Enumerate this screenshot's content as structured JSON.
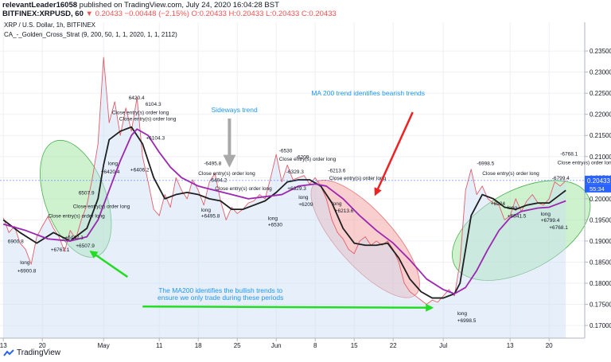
{
  "header": {
    "author": "relevantLeader16058",
    "published": "published on TradingView.com, July 24, 2020 16:04:28 BST",
    "symbol": "BITFINEX:XRPUSD, 60",
    "change": "▼ 0.20433 −0.00448 (−2.15%)",
    "ohlc": "O:0.20433 H:0.20433 L:0.20433 C:0.20433"
  },
  "legend": {
    "pair": "XRP / U.S. Dollar, 1h, BITFINEX",
    "strategy": "CA_-_Golden_Cross_Strat (9, 200, 50, 1, 1, 2020, 1, 1, 2112)"
  },
  "footer": {
    "brand": "TradingView"
  },
  "colors": {
    "price": "#e35d6a",
    "price_bull": "#5b9bd5",
    "ma_fast": "#1f1f1f",
    "ma_slow": "#9c27b0",
    "bull_fill": "#a6e8a6",
    "bear_fill": "#f4a6a6",
    "annotation": "#2196f3",
    "arrow_green": "#22dd22",
    "arrow_red": "#ee2222",
    "arrow_gray": "#a9a9a9",
    "axis_accent": "#2962ff"
  },
  "chart_data": {
    "type": "line",
    "x_labels": [
      "13",
      "20",
      "May",
      "11",
      "18",
      "25",
      "Jun",
      "8",
      "15",
      "22",
      "Jul",
      "13",
      "20"
    ],
    "x_label_days": [
      -18,
      -11,
      0,
      10,
      17,
      24,
      31,
      38,
      45,
      52,
      61,
      73,
      80
    ],
    "y_ticks": [
      "0.23500",
      "0.23000",
      "0.22500",
      "0.22000",
      "0.21500",
      "0.21000",
      "0.20500",
      "0.20000",
      "0.19500",
      "0.19000",
      "0.18500",
      "0.18000",
      "0.17500",
      "0.17000"
    ],
    "ylim": [
      0.167,
      0.2418
    ],
    "xlim_days": [
      -18.6,
      86.4
    ],
    "last_price": "0.20433",
    "countdown": "55:34",
    "series": [
      {
        "key": "price",
        "points": [
          [
            -18,
            0.1955
          ],
          [
            -17,
            0.192
          ],
          [
            -16,
            0.1935
          ],
          [
            -15,
            0.1895
          ],
          [
            -14,
            0.188
          ],
          [
            -13,
            0.1845
          ],
          [
            -12,
            0.191
          ],
          [
            -11,
            0.1935
          ],
          [
            -10,
            0.1958
          ],
          [
            -9,
            0.193
          ],
          [
            -8,
            0.191
          ],
          [
            -7,
            0.1875
          ],
          [
            -6,
            0.1925
          ],
          [
            -5,
            0.1905
          ],
          [
            -4,
            0.195
          ],
          [
            -3,
            0.1985
          ],
          [
            -2,
            0.205
          ],
          [
            -1,
            0.213
          ],
          [
            0,
            0.2335
          ],
          [
            1,
            0.218
          ],
          [
            2,
            0.223
          ],
          [
            3,
            0.215
          ],
          [
            4,
            0.2215
          ],
          [
            5,
            0.216
          ],
          [
            6,
            0.224
          ],
          [
            7,
            0.21
          ],
          [
            8,
            0.204
          ],
          [
            9,
            0.1975
          ],
          [
            10,
            0.196
          ],
          [
            11,
            0.201
          ],
          [
            12,
            0.198
          ],
          [
            13,
            0.205
          ],
          [
            14,
            0.202
          ],
          [
            15,
            0.2
          ],
          [
            16,
            0.2045
          ],
          [
            17,
            0.202
          ],
          [
            18,
            0.1985
          ],
          [
            19,
            0.204
          ],
          [
            20,
            0.206
          ],
          [
            21,
            0.1995
          ],
          [
            22,
            0.195
          ],
          [
            23,
            0.198
          ],
          [
            24,
            0.1965
          ],
          [
            25,
            0.1975
          ],
          [
            26,
            0.199
          ],
          [
            27,
            0.1995
          ],
          [
            28,
            0.201
          ],
          [
            29,
            0.2
          ],
          [
            30,
            0.205
          ],
          [
            31,
            0.2105
          ],
          [
            32,
            0.204
          ],
          [
            33,
            0.208
          ],
          [
            34,
            0.2045
          ],
          [
            35,
            0.205
          ],
          [
            36,
            0.2055
          ],
          [
            37,
            0.2035
          ],
          [
            38,
            0.205
          ],
          [
            39,
            0.203
          ],
          [
            40,
            0.2
          ],
          [
            41,
            0.195
          ],
          [
            42,
            0.192
          ],
          [
            43,
            0.1905
          ],
          [
            44,
            0.188
          ],
          [
            45,
            0.187
          ],
          [
            46,
            0.19
          ],
          [
            47,
            0.191
          ],
          [
            48,
            0.189
          ],
          [
            49,
            0.19
          ],
          [
            50,
            0.189
          ],
          [
            51,
            0.19
          ],
          [
            52,
            0.188
          ],
          [
            53,
            0.185
          ],
          [
            54,
            0.18
          ],
          [
            55,
            0.178
          ],
          [
            56,
            0.177
          ],
          [
            57,
            0.176
          ],
          [
            58,
            0.175
          ],
          [
            59,
            0.176
          ],
          [
            60,
            0.1755
          ],
          [
            61,
            0.177
          ],
          [
            62,
            0.1785
          ],
          [
            63,
            0.177
          ],
          [
            64,
            0.185
          ],
          [
            65,
            0.202
          ],
          [
            66,
            0.207
          ],
          [
            67,
            0.201
          ],
          [
            68,
            0.203
          ],
          [
            69,
            0.2
          ],
          [
            70,
            0.199
          ],
          [
            71,
            0.1985
          ],
          [
            72,
            0.195
          ],
          [
            73,
            0.196
          ],
          [
            74,
            0.2
          ],
          [
            75,
            0.197
          ],
          [
            76,
            0.1995
          ],
          [
            77,
            0.201
          ],
          [
            78,
            0.199
          ],
          [
            79,
            0.1985
          ],
          [
            80,
            0.2
          ],
          [
            81,
            0.204
          ],
          [
            82,
            0.203
          ],
          [
            83,
            0.2043
          ]
        ]
      },
      {
        "key": "ma_fast",
        "points": [
          [
            -18,
            0.195
          ],
          [
            -15,
            0.192
          ],
          [
            -12,
            0.1895
          ],
          [
            -9,
            0.192
          ],
          [
            -6,
            0.19
          ],
          [
            -3,
            0.193
          ],
          [
            -1,
            0.2
          ],
          [
            0,
            0.208
          ],
          [
            1,
            0.214
          ],
          [
            3,
            0.216
          ],
          [
            5,
            0.217
          ],
          [
            7,
            0.213
          ],
          [
            9,
            0.205
          ],
          [
            11,
            0.2
          ],
          [
            13,
            0.201
          ],
          [
            15,
            0.2015
          ],
          [
            17,
            0.201
          ],
          [
            19,
            0.2
          ],
          [
            21,
            0.1995
          ],
          [
            23,
            0.1975
          ],
          [
            25,
            0.1975
          ],
          [
            27,
            0.1985
          ],
          [
            29,
            0.1995
          ],
          [
            31,
            0.2015
          ],
          [
            33,
            0.204
          ],
          [
            35,
            0.2045
          ],
          [
            37,
            0.2045
          ],
          [
            39,
            0.203
          ],
          [
            41,
            0.199
          ],
          [
            43,
            0.193
          ],
          [
            45,
            0.1895
          ],
          [
            47,
            0.189
          ],
          [
            49,
            0.189
          ],
          [
            51,
            0.1895
          ],
          [
            53,
            0.186
          ],
          [
            55,
            0.181
          ],
          [
            57,
            0.178
          ],
          [
            59,
            0.1765
          ],
          [
            61,
            0.1765
          ],
          [
            63,
            0.1775
          ],
          [
            64,
            0.18
          ],
          [
            65,
            0.188
          ],
          [
            66,
            0.196
          ],
          [
            68,
            0.201
          ],
          [
            70,
            0.2
          ],
          [
            72,
            0.198
          ],
          [
            74,
            0.1975
          ],
          [
            76,
            0.1985
          ],
          [
            78,
            0.199
          ],
          [
            80,
            0.199
          ],
          [
            82,
            0.201
          ],
          [
            83,
            0.202
          ]
        ]
      },
      {
        "key": "ma_slow",
        "points": [
          [
            -18,
            0.194
          ],
          [
            -14,
            0.1925
          ],
          [
            -10,
            0.1905
          ],
          [
            -6,
            0.19
          ],
          [
            -3,
            0.191
          ],
          [
            -1,
            0.195
          ],
          [
            1,
            0.202
          ],
          [
            3,
            0.209
          ],
          [
            5,
            0.215
          ],
          [
            6,
            0.2165
          ],
          [
            8,
            0.215
          ],
          [
            10,
            0.211
          ],
          [
            12,
            0.2075
          ],
          [
            14,
            0.205
          ],
          [
            17,
            0.203
          ],
          [
            20,
            0.202
          ],
          [
            23,
            0.201
          ],
          [
            26,
            0.2
          ],
          [
            29,
            0.2005
          ],
          [
            32,
            0.201
          ],
          [
            35,
            0.203
          ],
          [
            38,
            0.2035
          ],
          [
            40,
            0.203
          ],
          [
            43,
            0.2
          ],
          [
            46,
            0.196
          ],
          [
            49,
            0.1925
          ],
          [
            52,
            0.1895
          ],
          [
            55,
            0.1855
          ],
          [
            58,
            0.181
          ],
          [
            61,
            0.1785
          ],
          [
            63,
            0.1775
          ],
          [
            65,
            0.179
          ],
          [
            67,
            0.183
          ],
          [
            69,
            0.188
          ],
          [
            71,
            0.1925
          ],
          [
            73,
            0.1955
          ],
          [
            75,
            0.197
          ],
          [
            78,
            0.1978
          ],
          [
            80,
            0.198
          ],
          [
            83,
            0.1995
          ]
        ]
      }
    ],
    "regions": [
      {
        "type": "bull",
        "cx": -5,
        "cy": 0.2,
        "rx": 5.5,
        "ry": 0.0145,
        "rotate": -20
      },
      {
        "type": "bear",
        "cx": 47,
        "cy": 0.1905,
        "rx": 13.5,
        "ry": 0.0065,
        "rotate": 48
      },
      {
        "type": "bull",
        "cx": 75,
        "cy": 0.1925,
        "rx": 13.5,
        "ry": 0.0095,
        "rotate": -28
      }
    ],
    "annotations": [
      {
        "text": "Sideways trend",
        "x": 23.5,
        "y": 0.2205
      },
      {
        "text": "MA 200 trend identifies bearish trends",
        "x": 47.5,
        "y": 0.2245
      },
      {
        "text": "The MA200 identifies the bullish trends to",
        "x": 21,
        "y": 0.1777
      },
      {
        "text": "ensure we only trade during these periods",
        "x": 21,
        "y": 0.176
      }
    ],
    "arrows": [
      {
        "color": "arrow_gray",
        "x1": 22.6,
        "y1": 0.219,
        "x2": 22.6,
        "y2": 0.208
      },
      {
        "color": "arrow_red",
        "x1": 55.5,
        "y1": 0.2205,
        "x2": 48.8,
        "y2": 0.201
      },
      {
        "color": "arrow_green",
        "x1": 4.3,
        "y1": 0.1815,
        "x2": -2.3,
        "y2": 0.1875
      },
      {
        "color": "arrow_green",
        "x1": 7,
        "y1": 0.1745,
        "x2": 59,
        "y2": 0.1742
      }
    ],
    "trade_labels": [
      {
        "text": "Close entry(s) order long",
        "x": 1.5,
        "y": 0.22
      },
      {
        "text": "Close entry(s) order long",
        "x": 2.8,
        "y": 0.2185
      },
      {
        "text": "6420.4",
        "x": 4.5,
        "y": 0.2235
      },
      {
        "text": "+6406.2",
        "x": 4.8,
        "y": 0.2065
      },
      {
        "text": "+6420.4",
        "x": -0.5,
        "y": 0.206
      },
      {
        "text": "long",
        "x": 0.8,
        "y": 0.208
      },
      {
        "text": "6104.3",
        "x": 7.5,
        "y": 0.222
      },
      {
        "text": "+6104.3",
        "x": 7.6,
        "y": 0.214
      },
      {
        "text": "6507.9",
        "x": -4.5,
        "y": 0.201
      },
      {
        "text": "Close entry(s) order long",
        "x": -5.5,
        "y": 0.1978
      },
      {
        "text": "Close entry(s) order long",
        "x": -10,
        "y": 0.1955
      },
      {
        "text": "+6442.1",
        "x": -7,
        "y": 0.1905
      },
      {
        "text": "+6507.9",
        "x": -5,
        "y": 0.1885
      },
      {
        "text": "+6767.1",
        "x": -9.5,
        "y": 0.1875
      },
      {
        "text": "6900.8",
        "x": -17.2,
        "y": 0.1895
      },
      {
        "text": "long",
        "x": -15,
        "y": 0.1845
      },
      {
        "text": "+6900.8",
        "x": -15.5,
        "y": 0.1825
      },
      {
        "text": "-6495.8",
        "x": 18,
        "y": 0.208
      },
      {
        "text": "Close entry(s) order long",
        "x": 17,
        "y": 0.2056
      },
      {
        "text": "-6494.2",
        "x": 19,
        "y": 0.204
      },
      {
        "text": "Close entry(s) order long",
        "x": 20,
        "y": 0.202
      },
      {
        "text": "long",
        "x": 17.5,
        "y": 0.197
      },
      {
        "text": "+6495.8",
        "x": 17.5,
        "y": 0.1955
      },
      {
        "text": "-6530",
        "x": 31.5,
        "y": 0.211
      },
      {
        "text": "Close entry(s) order long",
        "x": 31.5,
        "y": 0.209
      },
      {
        "text": "-6209",
        "x": 34.5,
        "y": 0.2095
      },
      {
        "text": "-6329.3",
        "x": 32.8,
        "y": 0.206
      },
      {
        "text": "Close entry(s) order long",
        "x": 40.5,
        "y": 0.2045
      },
      {
        "text": "-6213.6",
        "x": 40.3,
        "y": 0.2063
      },
      {
        "text": "+6329.3",
        "x": 33,
        "y": 0.202
      },
      {
        "text": "long",
        "x": 35,
        "y": 0.2
      },
      {
        "text": "+6209",
        "x": 35,
        "y": 0.1983
      },
      {
        "text": "long",
        "x": 29.5,
        "y": 0.195
      },
      {
        "text": "+6530",
        "x": 29.5,
        "y": 0.1935
      },
      {
        "text": "long",
        "x": 41,
        "y": 0.1985
      },
      {
        "text": "+6213.6",
        "x": 41.5,
        "y": 0.1968
      },
      {
        "text": "-6998.5",
        "x": 67,
        "y": 0.208
      },
      {
        "text": "Close entry(s) order long",
        "x": 68,
        "y": 0.2056
      },
      {
        "text": "long",
        "x": 72.5,
        "y": 0.1975
      },
      {
        "text": "+6924",
        "x": 69.5,
        "y": 0.1985
      },
      {
        "text": "+6841.5",
        "x": 72.5,
        "y": 0.1955
      },
      {
        "text": "-6768.1",
        "x": 82,
        "y": 0.2102
      },
      {
        "text": "Close entry(s) order long",
        "x": 81.5,
        "y": 0.2082
      },
      {
        "text": "-6799.4",
        "x": 80.5,
        "y": 0.2045
      },
      {
        "text": "long",
        "x": 78.5,
        "y": 0.196
      },
      {
        "text": "+6799.4",
        "x": 78.5,
        "y": 0.1945
      },
      {
        "text": "+6768.1",
        "x": 80,
        "y": 0.1928
      },
      {
        "text": "long",
        "x": 63.5,
        "y": 0.1725
      },
      {
        "text": "+6998.5",
        "x": 63.5,
        "y": 0.1708
      }
    ]
  }
}
